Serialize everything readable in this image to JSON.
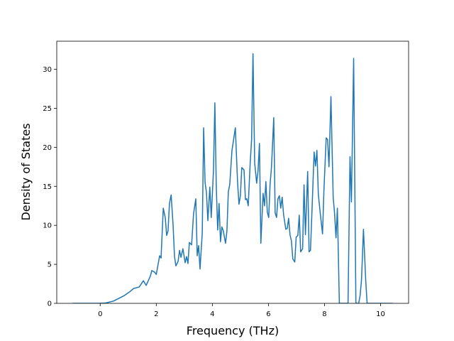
{
  "chart_data": {
    "type": "line",
    "xlabel": "Frequency (THz)",
    "ylabel": "Density of States",
    "xlim": [
      -1.55,
      11.0
    ],
    "ylim": [
      0,
      33.6
    ],
    "xticks": [
      0,
      2,
      4,
      6,
      8,
      10
    ],
    "yticks": [
      0,
      5,
      10,
      15,
      20,
      25,
      30
    ],
    "grid": false,
    "series": [
      {
        "name": "DOS",
        "color": "#1f77b4",
        "x": [
          -0.98,
          -0.5,
          0,
          0.2,
          0.48,
          0.86,
          1.06,
          1.19,
          1.39,
          1.54,
          1.64,
          1.79,
          1.84,
          1.94,
          2.0,
          2.12,
          2.17,
          2.25,
          2.32,
          2.37,
          2.42,
          2.47,
          2.53,
          2.6,
          2.65,
          2.7,
          2.78,
          2.83,
          2.88,
          2.95,
          3.03,
          3.08,
          3.13,
          3.18,
          3.26,
          3.33,
          3.41,
          3.46,
          3.51,
          3.56,
          3.64,
          3.69,
          3.74,
          3.79,
          3.84,
          3.91,
          3.96,
          4.04,
          4.09,
          4.14,
          4.19,
          4.24,
          4.29,
          4.34,
          4.39,
          4.47,
          4.52,
          4.57,
          4.62,
          4.7,
          4.82,
          4.9,
          4.95,
          5.0,
          5.05,
          5.13,
          5.18,
          5.23,
          5.28,
          5.35,
          5.4,
          5.45,
          5.51,
          5.58,
          5.63,
          5.68,
          5.73,
          5.81,
          5.86,
          5.91,
          5.96,
          6.01,
          6.06,
          6.11,
          6.19,
          6.24,
          6.29,
          6.34,
          6.39,
          6.44,
          6.49,
          6.54,
          6.62,
          6.67,
          6.72,
          6.77,
          6.82,
          6.87,
          6.94,
          6.99,
          7.05,
          7.1,
          7.15,
          7.22,
          7.27,
          7.32,
          7.4,
          7.45,
          7.5,
          7.55,
          7.63,
          7.68,
          7.73,
          7.78,
          7.85,
          7.93,
          7.98,
          8.06,
          8.11,
          8.16,
          8.23,
          8.31,
          8.36,
          8.41,
          8.46,
          8.53,
          8.84,
          8.91,
          8.96,
          9.04,
          9.12,
          9.22,
          9.27,
          9.32,
          9.39,
          9.47,
          9.52,
          10.43
        ],
        "values": [
          0,
          0,
          0,
          0.05,
          0.3,
          1.0,
          1.5,
          1.9,
          2.1,
          2.9,
          2.3,
          3.5,
          4.2,
          4.0,
          3.7,
          6.1,
          5.8,
          12.2,
          11.0,
          8.7,
          9.3,
          12.8,
          13.9,
          10.0,
          6.0,
          4.8,
          5.4,
          6.8,
          5.9,
          7.0,
          5.2,
          6.0,
          5.1,
          7.8,
          7.5,
          11.5,
          13.4,
          6.1,
          7.4,
          4.4,
          9.0,
          22.5,
          15.5,
          14.2,
          10.6,
          14.9,
          11.0,
          17.0,
          25.7,
          15.0,
          9.4,
          12.8,
          7.9,
          9.8,
          9.3,
          7.7,
          9.3,
          14.3,
          15.2,
          19.6,
          22.5,
          15.5,
          12.7,
          13.8,
          17.4,
          17.1,
          13.3,
          13.4,
          12.5,
          18.0,
          21.0,
          32.0,
          18.0,
          15.4,
          17.0,
          20.5,
          7.7,
          14.1,
          12.5,
          15.6,
          11.7,
          11.0,
          15.3,
          17.5,
          23.8,
          11.6,
          11.0,
          13.4,
          13.8,
          12.2,
          13.6,
          11.4,
          9.5,
          9.6,
          10.9,
          8.8,
          8.0,
          5.7,
          5.3,
          8.5,
          8.7,
          11.3,
          6.6,
          7.0,
          15.2,
          8.8,
          16.9,
          6.6,
          6.8,
          11.5,
          19.4,
          17.6,
          19.6,
          14.0,
          11.5,
          8.9,
          14.5,
          21.2,
          21.0,
          17.5,
          26.5,
          13.6,
          11.5,
          8.4,
          12.2,
          0,
          0,
          18.8,
          13.0,
          31.4,
          0,
          0,
          1.0,
          3.0,
          9.5,
          3.0,
          0,
          0
        ]
      }
    ]
  }
}
